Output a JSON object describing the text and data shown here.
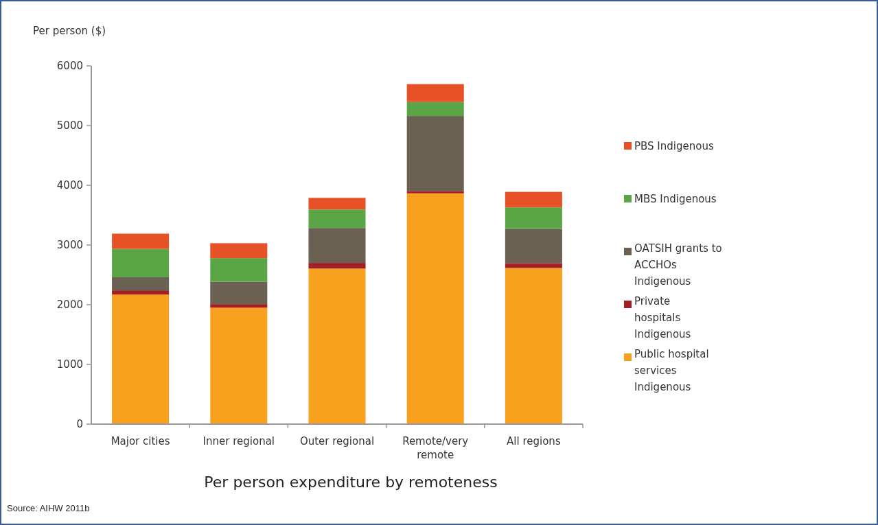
{
  "chart_data": {
    "type": "bar",
    "stacked": true,
    "title": "Per person expenditure by remoteness",
    "ylabel": "Per person ($)",
    "categories": [
      "Major cities",
      "Inner regional",
      "Outer regional",
      "Remote/very remote",
      "All regions"
    ],
    "series": [
      {
        "name": "Public hospital services Indigenous",
        "color": "#f7a11e",
        "values": [
          2170,
          1950,
          2605,
          3865,
          2615
        ]
      },
      {
        "name": "Private hospitals Indigenous",
        "color": "#a31f23",
        "values": [
          70,
          60,
          95,
          40,
          80
        ]
      },
      {
        "name": "OATSIH grants to ACCHOs Indigenous",
        "color": "#6b6152",
        "values": [
          220,
          375,
          585,
          1255,
          575
        ]
      },
      {
        "name": "MBS Indigenous",
        "color": "#5aa647",
        "values": [
          475,
          395,
          310,
          235,
          360
        ]
      },
      {
        "name": "PBS Indigenous",
        "color": "#e65226",
        "values": [
          255,
          250,
          195,
          300,
          260
        ]
      }
    ],
    "ylim": [
      0,
      6000
    ],
    "yticks": [
      0,
      1000,
      2000,
      3000,
      4000,
      5000,
      6000
    ],
    "grid": false,
    "legend": "right",
    "annotations": [
      "Source: AIHW 2011b"
    ]
  }
}
